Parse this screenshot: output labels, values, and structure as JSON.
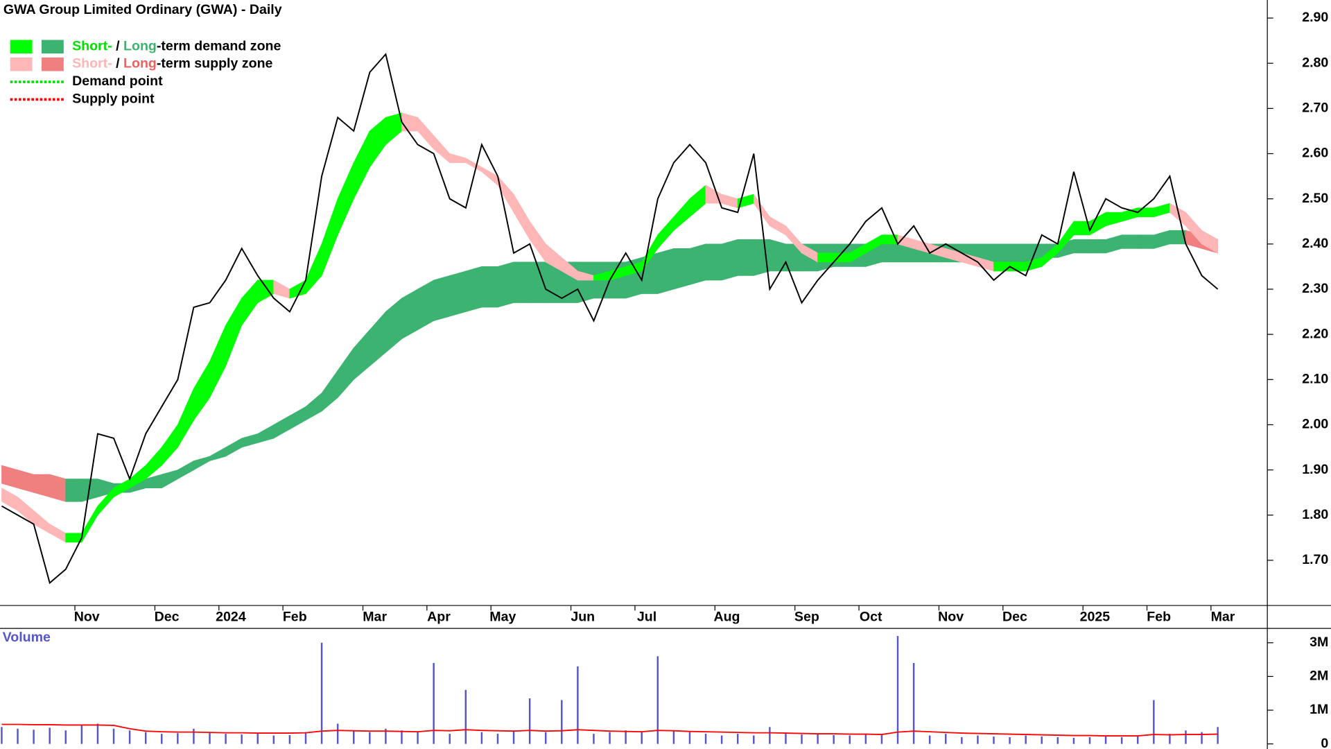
{
  "chart_data": {
    "type": "stock",
    "title": "GWA Group Limited Ordinary (GWA) - Daily",
    "categories": [
      null,
      null,
      null,
      null,
      null,
      "Nov",
      null,
      null,
      null,
      null,
      "Dec",
      null,
      null,
      null,
      "2024",
      null,
      null,
      null,
      "Feb",
      null,
      null,
      null,
      null,
      "Mar",
      null,
      null,
      null,
      "Apr",
      null,
      null,
      null,
      "May",
      null,
      null,
      null,
      null,
      "Jun",
      null,
      null,
      null,
      "Jul",
      null,
      null,
      null,
      null,
      "Aug",
      null,
      null,
      null,
      null,
      "Sep",
      null,
      null,
      null,
      "Oct",
      null,
      null,
      null,
      null,
      "Nov",
      null,
      null,
      null,
      "Dec",
      null,
      null,
      null,
      null,
      "2025",
      null,
      null,
      null,
      "Feb",
      null,
      null,
      null,
      "Mar"
    ],
    "close": [
      1.82,
      1.8,
      1.78,
      1.65,
      1.68,
      1.75,
      1.98,
      1.97,
      1.88,
      1.98,
      2.04,
      2.1,
      2.26,
      2.27,
      2.32,
      2.39,
      2.33,
      2.28,
      2.25,
      2.32,
      2.55,
      2.68,
      2.65,
      2.78,
      2.82,
      2.67,
      2.62,
      2.6,
      2.5,
      2.48,
      2.62,
      2.55,
      2.38,
      2.4,
      2.3,
      2.28,
      2.3,
      2.23,
      2.32,
      2.38,
      2.32,
      2.5,
      2.58,
      2.62,
      2.58,
      2.48,
      2.47,
      2.6,
      2.3,
      2.36,
      2.27,
      2.32,
      2.36,
      2.4,
      2.45,
      2.48,
      2.4,
      2.44,
      2.38,
      2.4,
      2.38,
      2.36,
      2.32,
      2.35,
      2.33,
      2.42,
      2.4,
      2.56,
      2.43,
      2.5,
      2.48,
      2.47,
      2.5,
      2.55,
      2.4,
      2.33,
      2.3
    ],
    "close_color": "#000000",
    "short_zone": {
      "upper": [
        1.86,
        1.84,
        1.81,
        1.78,
        1.76,
        1.76,
        1.82,
        1.86,
        1.88,
        1.91,
        1.95,
        2.0,
        2.08,
        2.14,
        2.22,
        2.28,
        2.32,
        2.32,
        2.3,
        2.32,
        2.4,
        2.5,
        2.58,
        2.65,
        2.68,
        2.69,
        2.68,
        2.64,
        2.6,
        2.59,
        2.57,
        2.55,
        2.51,
        2.45,
        2.4,
        2.37,
        2.34,
        2.33,
        2.34,
        2.35,
        2.36,
        2.42,
        2.46,
        2.5,
        2.53,
        2.51,
        2.5,
        2.51,
        2.46,
        2.44,
        2.4,
        2.38,
        2.38,
        2.38,
        2.4,
        2.42,
        2.42,
        2.41,
        2.4,
        2.39,
        2.38,
        2.37,
        2.36,
        2.36,
        2.36,
        2.37,
        2.4,
        2.45,
        2.45,
        2.47,
        2.47,
        2.48,
        2.48,
        2.49,
        2.47,
        2.43,
        2.41
      ],
      "lower": [
        1.83,
        1.81,
        1.78,
        1.76,
        1.74,
        1.74,
        1.8,
        1.84,
        1.86,
        1.88,
        1.91,
        1.95,
        2.01,
        2.06,
        2.13,
        2.22,
        2.27,
        2.29,
        2.28,
        2.29,
        2.33,
        2.42,
        2.5,
        2.57,
        2.62,
        2.65,
        2.65,
        2.61,
        2.58,
        2.58,
        2.56,
        2.53,
        2.47,
        2.41,
        2.36,
        2.34,
        2.32,
        2.32,
        2.32,
        2.33,
        2.34,
        2.39,
        2.43,
        2.46,
        2.49,
        2.49,
        2.48,
        2.49,
        2.44,
        2.42,
        2.38,
        2.36,
        2.36,
        2.36,
        2.38,
        2.4,
        2.4,
        2.39,
        2.38,
        2.37,
        2.36,
        2.35,
        2.34,
        2.34,
        2.34,
        2.35,
        2.38,
        2.42,
        2.42,
        2.44,
        2.45,
        2.46,
        2.46,
        2.47,
        2.44,
        2.4,
        2.38
      ],
      "demand_color": "#00ff00",
      "supply_color": "#ffb6b6"
    },
    "long_zone": {
      "upper": [
        1.91,
        1.9,
        1.89,
        1.89,
        1.88,
        1.88,
        1.88,
        1.87,
        1.87,
        1.88,
        1.89,
        1.9,
        1.92,
        1.93,
        1.95,
        1.97,
        1.98,
        2.0,
        2.02,
        2.04,
        2.07,
        2.12,
        2.17,
        2.21,
        2.25,
        2.28,
        2.3,
        2.32,
        2.33,
        2.34,
        2.35,
        2.35,
        2.36,
        2.36,
        2.36,
        2.36,
        2.36,
        2.36,
        2.36,
        2.36,
        2.37,
        2.38,
        2.39,
        2.39,
        2.4,
        2.4,
        2.41,
        2.41,
        2.41,
        2.4,
        2.4,
        2.4,
        2.4,
        2.4,
        2.4,
        2.4,
        2.4,
        2.4,
        2.4,
        2.4,
        2.4,
        2.4,
        2.4,
        2.4,
        2.4,
        2.4,
        2.4,
        2.41,
        2.41,
        2.41,
        2.42,
        2.42,
        2.42,
        2.43,
        2.43,
        2.42,
        2.41
      ],
      "lower": [
        1.87,
        1.86,
        1.85,
        1.84,
        1.83,
        1.83,
        1.84,
        1.85,
        1.85,
        1.86,
        1.86,
        1.88,
        1.9,
        1.92,
        1.93,
        1.95,
        1.96,
        1.97,
        1.99,
        2.01,
        2.03,
        2.06,
        2.1,
        2.13,
        2.16,
        2.19,
        2.21,
        2.23,
        2.24,
        2.25,
        2.26,
        2.26,
        2.27,
        2.27,
        2.27,
        2.27,
        2.27,
        2.28,
        2.28,
        2.28,
        2.29,
        2.29,
        2.3,
        2.31,
        2.32,
        2.32,
        2.33,
        2.33,
        2.34,
        2.34,
        2.34,
        2.34,
        2.35,
        2.35,
        2.35,
        2.36,
        2.36,
        2.36,
        2.36,
        2.36,
        2.36,
        2.36,
        2.36,
        2.36,
        2.36,
        2.37,
        2.37,
        2.38,
        2.38,
        2.38,
        2.39,
        2.39,
        2.39,
        2.4,
        2.4,
        2.39,
        2.38
      ],
      "demand_color": "#3cb371",
      "supply_color": "#f08080"
    },
    "ylim": [
      1.6,
      2.94
    ],
    "yticks": [
      {
        "value": 1.7,
        "label": "1.70"
      },
      {
        "value": 1.8,
        "label": "1.80"
      },
      {
        "value": 1.9,
        "label": "1.90"
      },
      {
        "value": 2.0,
        "label": "2.00"
      },
      {
        "value": 2.1,
        "label": "2.10"
      },
      {
        "value": 2.2,
        "label": "2.20"
      },
      {
        "value": 2.3,
        "label": "2.30"
      },
      {
        "value": 2.4,
        "label": "2.40"
      },
      {
        "value": 2.5,
        "label": "2.50"
      },
      {
        "value": 2.6,
        "label": "2.60"
      },
      {
        "value": 2.7,
        "label": "2.70"
      },
      {
        "value": 2.8,
        "label": "2.80"
      },
      {
        "value": 2.9,
        "label": "2.90"
      }
    ],
    "legend": [
      {
        "swatches": [
          "#00ff00",
          "#3cb371"
        ],
        "parts": [
          {
            "text": "Short-",
            "color": "#00e000"
          },
          {
            "text": " / ",
            "color": "#000000"
          },
          {
            "text": "Long",
            "color": "#3cb371"
          },
          {
            "text": "-term demand zone",
            "color": "#000000"
          }
        ]
      },
      {
        "swatches": [
          "#ffb6b6",
          "#f08080"
        ],
        "parts": [
          {
            "text": "Short-",
            "color": "#ffb6b6"
          },
          {
            "text": " / ",
            "color": "#000000"
          },
          {
            "text": "Long",
            "color": "#f06060"
          },
          {
            "text": "-term supply zone",
            "color": "#000000"
          }
        ]
      },
      {
        "line": "#00e000",
        "parts": [
          {
            "text": "Demand point",
            "color": "#000000"
          }
        ]
      },
      {
        "line": "#ff0000",
        "parts": [
          {
            "text": "Supply point",
            "color": "#000000"
          }
        ]
      }
    ],
    "volume": {
      "label": "Volume",
      "color": "#5555cc",
      "average_color": "#ff0000",
      "values": [
        500000,
        450000,
        420000,
        480000,
        400000,
        550000,
        600000,
        450000,
        400000,
        350000,
        300000,
        320000,
        450000,
        350000,
        300000,
        280000,
        300000,
        250000,
        260000,
        350000,
        3000000,
        600000,
        400000,
        350000,
        450000,
        400000,
        350000,
        2400000,
        300000,
        1600000,
        350000,
        300000,
        400000,
        1350000,
        350000,
        1300000,
        2300000,
        300000,
        350000,
        400000,
        350000,
        2600000,
        400000,
        350000,
        300000,
        250000,
        300000,
        250000,
        500000,
        300000,
        280000,
        300000,
        260000,
        250000,
        280000,
        300000,
        3200000,
        2400000,
        250000,
        300000,
        200000,
        250000,
        220000,
        200000,
        250000,
        220000,
        200000,
        180000,
        200000,
        220000,
        200000,
        250000,
        1300000,
        300000,
        400000,
        350000,
        500000
      ],
      "average": [
        580000,
        580000,
        570000,
        570000,
        560000,
        560000,
        560000,
        550000,
        450000,
        380000,
        360000,
        350000,
        350000,
        340000,
        330000,
        330000,
        320000,
        320000,
        320000,
        330000,
        380000,
        400000,
        390000,
        380000,
        380000,
        370000,
        360000,
        400000,
        390000,
        420000,
        400000,
        390000,
        380000,
        400000,
        380000,
        390000,
        420000,
        400000,
        380000,
        370000,
        360000,
        400000,
        390000,
        370000,
        360000,
        350000,
        340000,
        330000,
        330000,
        320000,
        310000,
        300000,
        300000,
        290000,
        290000,
        280000,
        350000,
        380000,
        360000,
        340000,
        320000,
        310000,
        300000,
        290000,
        280000,
        270000,
        260000,
        250000,
        250000,
        240000,
        240000,
        240000,
        280000,
        270000,
        280000,
        280000,
        290000
      ],
      "ylim": [
        0,
        3400000
      ],
      "yticks": [
        0,
        {
          "value": 1000000,
          "label": "1M"
        },
        {
          "value": 2000000,
          "label": "2M"
        },
        {
          "value": 3000000,
          "label": "3M"
        }
      ]
    }
  }
}
